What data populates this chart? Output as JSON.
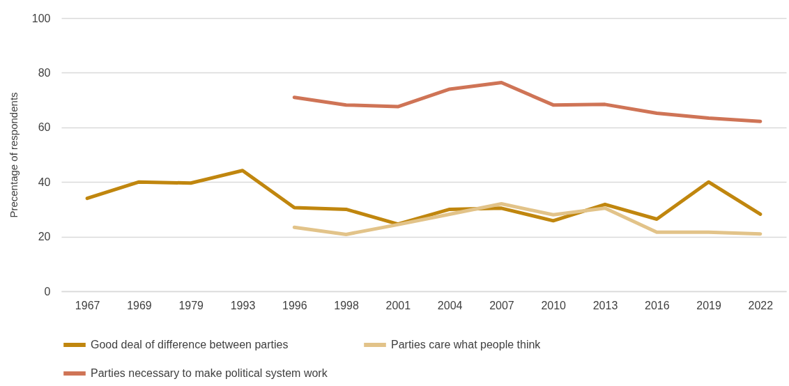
{
  "chart_data": {
    "type": "line",
    "ylabel": "Precentage of respondents",
    "categories": [
      "1967",
      "1969",
      "1979",
      "1993",
      "1996",
      "1998",
      "2001",
      "2004",
      "2007",
      "2010",
      "2013",
      "2016",
      "2019",
      "2022"
    ],
    "series": [
      {
        "name": "Good deal of difference between parties",
        "color": "#c0860e",
        "values": [
          34,
          40,
          39.6,
          44.2,
          30.6,
          30,
          24.6,
          30,
          30.4,
          25.8,
          31.8,
          26.4,
          40,
          28.2
        ]
      },
      {
        "name": "Parties care what people think",
        "color": "#e2c389",
        "values": [
          null,
          null,
          null,
          null,
          23.4,
          20.8,
          24.4,
          28.2,
          32,
          28,
          30.4,
          21.6,
          21.6,
          21
        ]
      },
      {
        "name": "Parties necessary to make political system work",
        "color": "#cf7456",
        "values": [
          null,
          null,
          null,
          null,
          71,
          68.2,
          67.6,
          74,
          76.4,
          68.2,
          68.4,
          65.2,
          63.4,
          62.2
        ]
      }
    ],
    "ylim": [
      0,
      100
    ],
    "yticks": [
      0,
      20,
      40,
      60,
      80,
      100
    ],
    "grid": "y",
    "legend": "bottom",
    "line_style": "solid",
    "marker": "none"
  }
}
